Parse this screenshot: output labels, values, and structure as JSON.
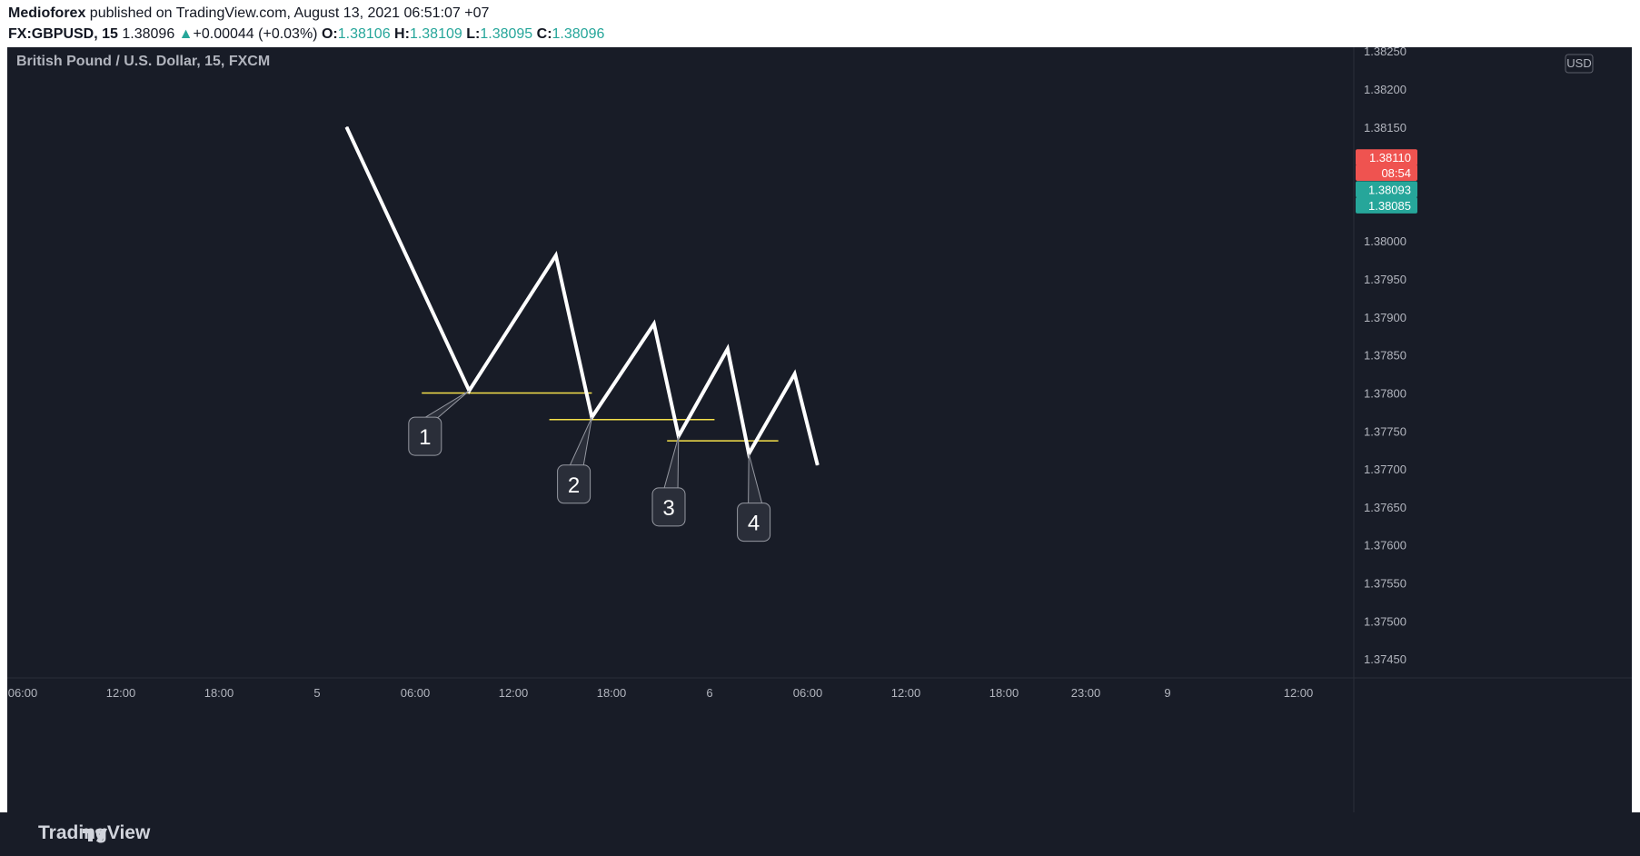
{
  "header": {
    "author": "Medioforex",
    "published": "published on TradingView.com, August 13, 2021 06:51:07 +07",
    "symbol": "FX:GBPUSD, 15",
    "price": "1.38096",
    "change": "+0.00044 (+0.03%)",
    "o_label": "O:",
    "o_value": "1.38106",
    "h_label": "H:",
    "h_value": "1.38109",
    "l_label": "L:",
    "l_value": "1.38095",
    "c_label": "C:",
    "c_value": "1.38096",
    "up_icon": "triangle-up-icon"
  },
  "chart_title": "British Pound / U.S. Dollar, 15, FXCM",
  "currency": "USD",
  "footer": {
    "logo_icon": "tradingview-logo-icon",
    "logo_text": "TradingView"
  },
  "colors": {
    "background": "#181c27",
    "line": "#ffffff",
    "level": "#f5e04a",
    "red_tag": "#ef5350",
    "teal_tag": "#26a69a",
    "axis_text": "#b2b5be",
    "callout_bg": "#2a2e39"
  },
  "chart_data": {
    "type": "line",
    "title": "British Pound / U.S. Dollar, 15, FXCM",
    "xlabel": "",
    "ylabel": "",
    "ylim": [
      1.37425,
      1.38255
    ],
    "y_ticks": [
      "1.38250",
      "1.38200",
      "1.38150",
      "1.38100",
      "1.38050",
      "1.38000",
      "1.37950",
      "1.37900",
      "1.37850",
      "1.37800",
      "1.37750",
      "1.37700",
      "1.37650",
      "1.37600",
      "1.37550",
      "1.37500",
      "1.37450"
    ],
    "x_ticks": [
      {
        "label": "06:00",
        "t": -36
      },
      {
        "label": "12:00",
        "t": -30
      },
      {
        "label": "18:00",
        "t": -24
      },
      {
        "label": "5",
        "t": -18
      },
      {
        "label": "06:00",
        "t": -12
      },
      {
        "label": "12:00",
        "t": -6
      },
      {
        "label": "18:00",
        "t": 0
      },
      {
        "label": "6",
        "t": 6
      },
      {
        "label": "06:00",
        "t": 12
      },
      {
        "label": "12:00",
        "t": 18
      },
      {
        "label": "18:00",
        "t": 24
      },
      {
        "label": "23:00",
        "t": 29
      },
      {
        "label": "9",
        "t": 34
      },
      {
        "label": "12:00",
        "t": 42
      }
    ],
    "series": [
      {
        "points": [
          {
            "t": -16.2,
            "y": 1.3815
          },
          {
            "t": -8.7,
            "y": 1.37803
          },
          {
            "t": -3.4,
            "y": 1.37981
          },
          {
            "t": -1.2,
            "y": 1.37768
          },
          {
            "t": 2.6,
            "y": 1.37891
          },
          {
            "t": 4.1,
            "y": 1.37743
          },
          {
            "t": 7.1,
            "y": 1.37858
          },
          {
            "t": 8.4,
            "y": 1.3772
          },
          {
            "t": 11.2,
            "y": 1.37825
          },
          {
            "t": 12.6,
            "y": 1.37705
          }
        ]
      }
    ],
    "levels": [
      {
        "t1": -11.6,
        "t2": -1.2,
        "y": 1.378
      },
      {
        "t1": -3.8,
        "t2": 6.3,
        "y": 1.37765
      },
      {
        "t1": 3.4,
        "t2": 10.2,
        "y": 1.37737
      }
    ],
    "callouts": [
      {
        "label": "1",
        "t": -11.4,
        "y": 1.37743,
        "target_t": -8.7,
        "target_y": 1.37803
      },
      {
        "label": "2",
        "t": -2.3,
        "y": 1.3768,
        "target_t": -1.2,
        "target_y": 1.37768
      },
      {
        "label": "3",
        "t": 3.5,
        "y": 1.3765,
        "target_t": 4.1,
        "target_y": 1.37743
      },
      {
        "label": "4",
        "t": 8.7,
        "y": 1.3763,
        "target_t": 8.4,
        "target_y": 1.3772
      }
    ],
    "price_tags": [
      {
        "label": "1.38110",
        "color": "red",
        "y": 1.3811
      },
      {
        "label": "08:54",
        "color": "red",
        "y": 1.3809
      },
      {
        "label": "1.38093",
        "color": "teal",
        "y": 1.38068
      },
      {
        "label": "1.38085",
        "color": "teal",
        "y": 1.38047
      }
    ],
    "grid": false,
    "legend": "none"
  }
}
